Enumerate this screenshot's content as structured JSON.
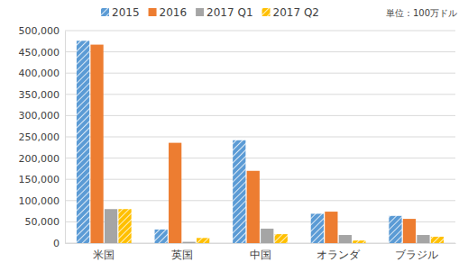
{
  "chart_data": {
    "type": "bar",
    "annotations": [
      "単位：100万ドル"
    ],
    "categories": [
      "米国",
      "英国",
      "中国",
      "オランダ",
      "ブラジル"
    ],
    "series": [
      {
        "name": "2015",
        "color": "#5b9bd5",
        "values": [
          476000,
          32000,
          242000,
          69000,
          64000
        ]
      },
      {
        "name": "2016",
        "color": "#ed7d31",
        "values": [
          467000,
          236000,
          170000,
          74000,
          57000
        ]
      },
      {
        "name": "2017 Q1",
        "color": "#a5a5a5",
        "values": [
          80000,
          3000,
          34000,
          19000,
          19000
        ]
      },
      {
        "name": "2017 Q2",
        "color": "#ffc000",
        "values": [
          80000,
          12000,
          21000,
          6000,
          15000
        ]
      }
    ],
    "ylim": [
      0,
      500000
    ],
    "yticks": [
      0,
      {
        "value": 50000,
        "label": "50,000"
      },
      {
        "value": 100000,
        "label": "100,000"
      },
      {
        "value": 150000,
        "label": "150,000"
      },
      {
        "value": 200000,
        "label": "200,000"
      },
      {
        "value": 250000,
        "label": "250,000"
      },
      {
        "value": 300000,
        "label": "300,000"
      },
      {
        "value": 350000,
        "label": "350,000"
      },
      {
        "value": 400000,
        "label": "400,000"
      },
      {
        "value": 450000,
        "label": "450,000"
      },
      {
        "value": 500000,
        "label": "500,000"
      }
    ],
    "grid": true,
    "legend": "top"
  }
}
